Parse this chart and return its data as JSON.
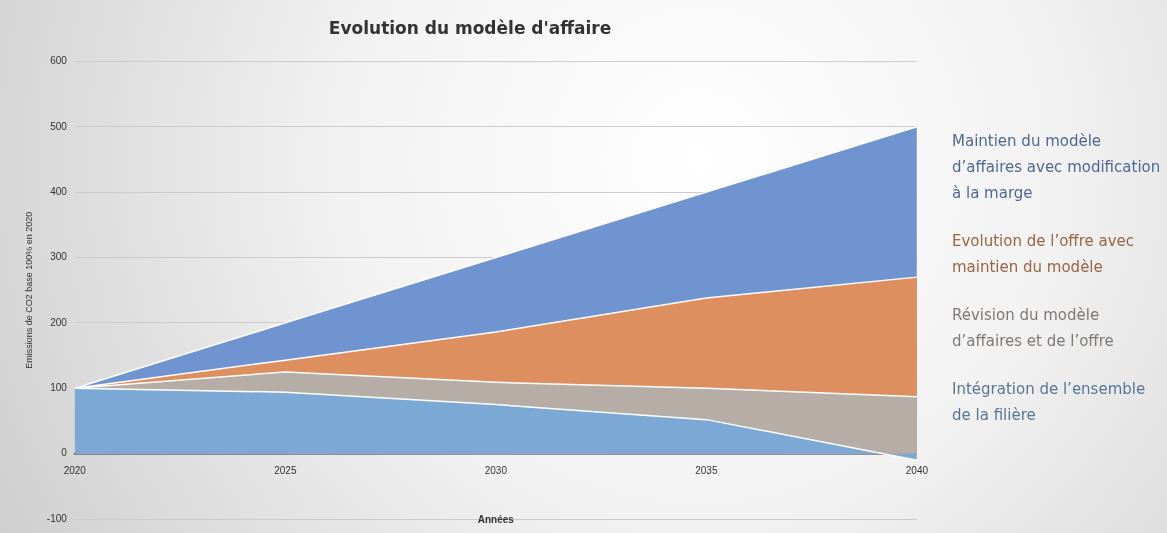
{
  "chart_data": {
    "type": "area",
    "title": "Evolution du modèle d'affaire",
    "xlabel": "Années",
    "ylabel": "Emissions de CO2 base 100% en 2020",
    "x": [
      2020,
      2025,
      2030,
      2035,
      2040
    ],
    "series": [
      {
        "name": "Maintien du modèle d’affaires avec modification à la marge",
        "color": "#7094d0",
        "values": [
          100,
          200,
          300,
          400,
          500
        ]
      },
      {
        "name": "Evolution de l’offre avec maintien du modèle",
        "color": "#de8f5f",
        "values": [
          100,
          143,
          186,
          238,
          270
        ]
      },
      {
        "name": "Révision du modèle d’affaires et de l’offre",
        "color": "#b6ada7",
        "values": [
          100,
          125,
          109,
          100,
          87
        ]
      },
      {
        "name": "Intégration de l’ensemble de la filière",
        "color": "#7ba8d4",
        "values": [
          100,
          94,
          75,
          52,
          -10
        ]
      }
    ],
    "xlim": [
      2020,
      2040
    ],
    "xticks": [
      2020,
      2025,
      2030,
      2035,
      2040
    ],
    "ylim": [
      -100,
      600
    ],
    "yticks": [
      -100,
      0,
      100,
      200,
      300,
      400,
      500,
      600
    ],
    "grid": "y",
    "legend": "right"
  }
}
